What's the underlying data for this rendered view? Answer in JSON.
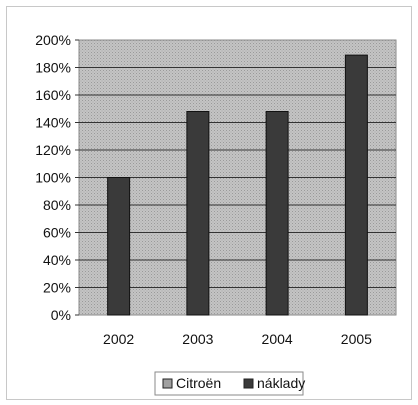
{
  "chart_data": {
    "type": "bar",
    "categories": [
      "2002",
      "2003",
      "2004",
      "2005"
    ],
    "series": [
      {
        "name": "Citroën",
        "values": [
          0,
          0,
          0,
          0
        ]
      },
      {
        "name": "náklady",
        "values": [
          100,
          148,
          148,
          189
        ]
      }
    ],
    "y_tick_labels": [
      "0%",
      "20%",
      "40%",
      "60%",
      "80%",
      "100%",
      "120%",
      "140%",
      "160%",
      "180%",
      "200%"
    ],
    "ylim": [
      0,
      200
    ],
    "y_unit": "%",
    "grid": true,
    "legend_position": "bottom",
    "colors": {
      "plot_bg": "#b9b9b9",
      "gridline": "#333333",
      "bar_fill": "#3a3a3a",
      "legend_citroen": "#9a9a9a",
      "legend_naklady": "#3a3a3a"
    }
  }
}
